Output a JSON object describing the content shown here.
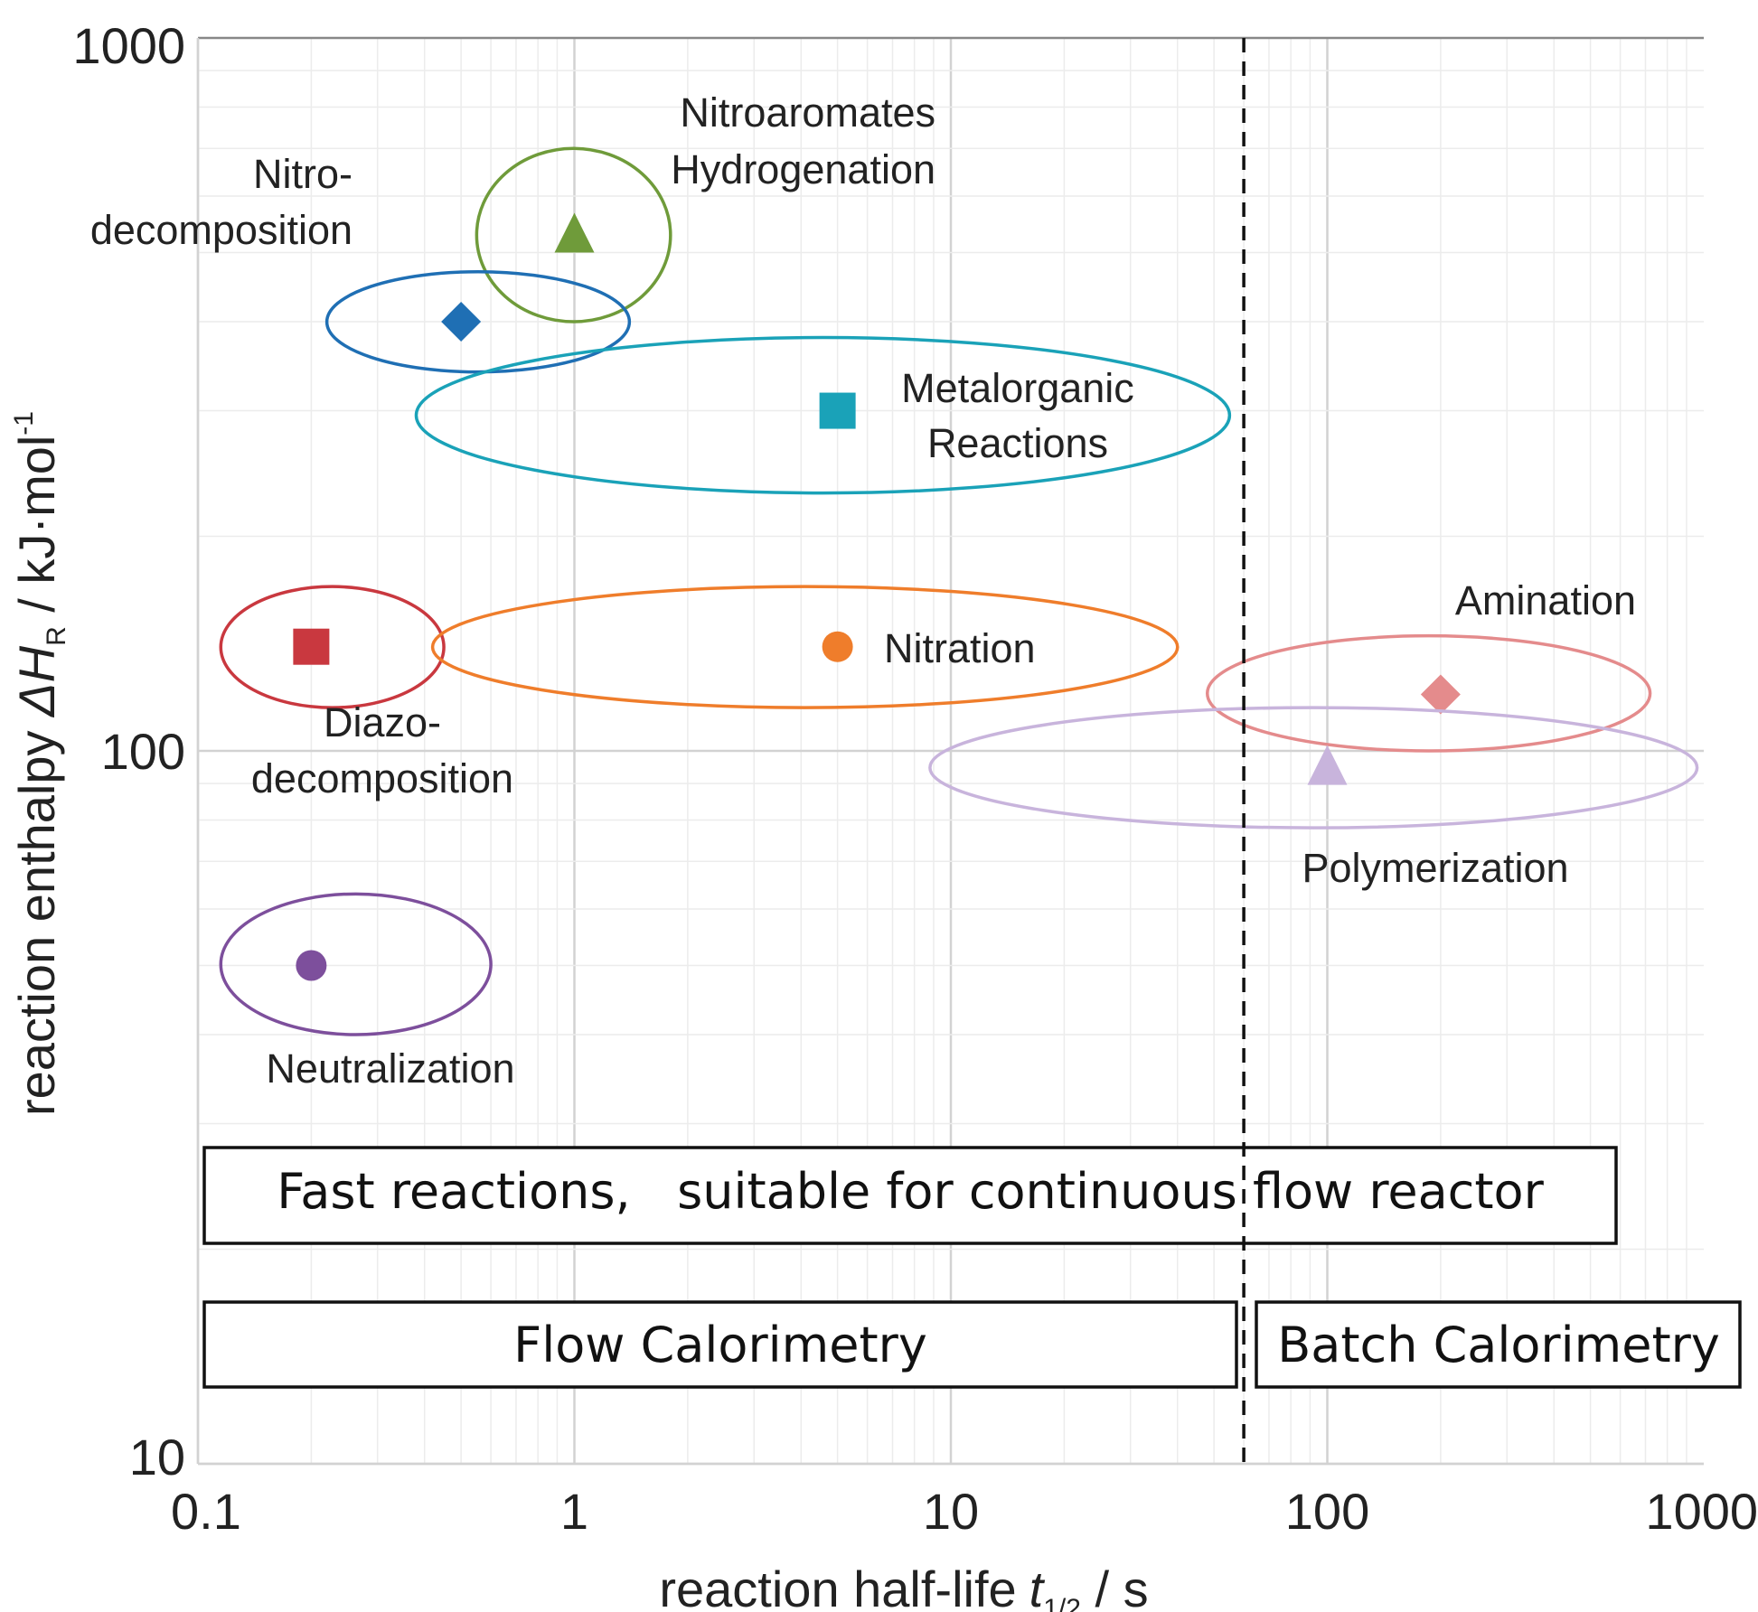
{
  "chart_data": {
    "type": "scatter",
    "title": "",
    "xlabel": "reaction half-life",
    "xlabel_symbol": "t",
    "xlabel_sub": "1/2",
    "xlabel_unit": " / s",
    "ylabel": "reaction enthalpy ",
    "ylabel_symbol": "ΔH",
    "ylabel_sub": "R",
    "ylabel_unit": " / kJ·mol",
    "ylabel_sup": "-1",
    "x_scale": "log",
    "y_scale": "log",
    "xlim": [
      0.1,
      1000
    ],
    "ylim": [
      10,
      1000
    ],
    "x_ticks": [
      "0.1",
      "1",
      "10",
      "100",
      "1000"
    ],
    "y_ticks": [
      "10",
      "100",
      "1000"
    ],
    "grid": true,
    "divider_x": 60,
    "points": [
      {
        "label_lines": [
          "Nitroaromates",
          "Hydrogenation"
        ],
        "x": 1.0,
        "y": 530,
        "marker": "triangle",
        "color": "#6f9b3a",
        "x_range": [
          0.55,
          1.8
        ],
        "y_range": [
          400,
          700
        ]
      },
      {
        "label_lines": [
          "Nitro-",
          "decomposition"
        ],
        "x": 0.5,
        "y": 400,
        "marker": "diamond",
        "color": "#1f6fb4",
        "x_range": [
          0.22,
          1.4
        ],
        "y_range": [
          340,
          470
        ]
      },
      {
        "label_lines": [
          "Metalorganic",
          "Reactions"
        ],
        "x": 5,
        "y": 300,
        "marker": "square",
        "color": "#1aa2b8",
        "x_range": [
          0.38,
          55
        ],
        "y_range": [
          230,
          380
        ]
      },
      {
        "label_lines": [
          "Diazo-",
          "decomposition"
        ],
        "x": 0.2,
        "y": 140,
        "marker": "square",
        "color": "#c9383f",
        "x_range": [
          0.115,
          0.45
        ],
        "y_range": [
          115,
          170
        ]
      },
      {
        "label_lines": [
          "Nitration"
        ],
        "x": 5,
        "y": 140,
        "marker": "circle",
        "color": "#ef7d2b",
        "x_range": [
          0.42,
          40
        ],
        "y_range": [
          115,
          170
        ]
      },
      {
        "label_lines": [
          "Neutralization"
        ],
        "x": 0.2,
        "y": 50,
        "marker": "circle",
        "color": "#7d4f9c",
        "x_range": [
          0.115,
          0.6
        ],
        "y_range": [
          40,
          63
        ]
      },
      {
        "label_lines": [
          "Amination"
        ],
        "x": 200,
        "y": 120,
        "marker": "diamond",
        "color": "#e48b8c",
        "x_range": [
          48,
          720
        ],
        "y_range": [
          100,
          145
        ]
      },
      {
        "label_lines": [
          "Polymerization"
        ],
        "x": 100,
        "y": 95,
        "marker": "triangle",
        "color": "#c8b4dc",
        "x_range": [
          8.8,
          960
        ],
        "y_range": [
          78,
          115
        ]
      }
    ],
    "boxes": [
      {
        "label": "Fast reactions,   suitable for continuous flow reactor"
      },
      {
        "label": "Flow Calorimetry"
      },
      {
        "label": "Batch Calorimetry"
      }
    ]
  }
}
